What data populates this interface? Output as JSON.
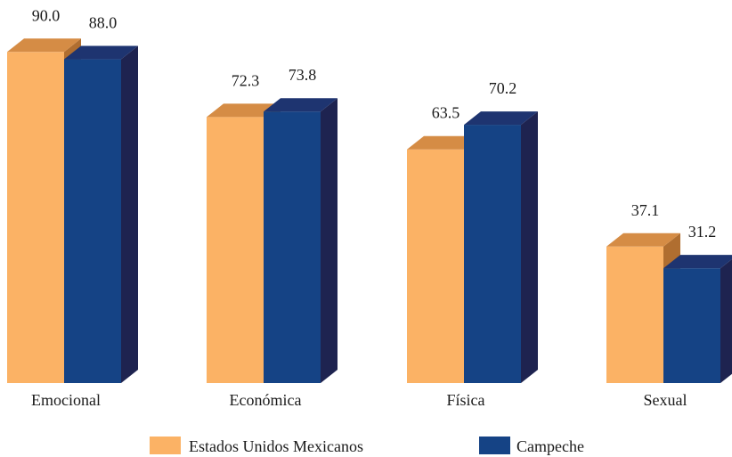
{
  "chart_data": {
    "type": "bar",
    "style": "3d-column",
    "categories": [
      "Emocional",
      "Económica",
      "Física",
      "Sexual"
    ],
    "series": [
      {
        "name": "Estados Unidos Mexicanos",
        "values": [
          90.0,
          72.3,
          63.5,
          37.1
        ],
        "value_labels": [
          "90.0",
          "72.3",
          "63.5",
          "37.1"
        ],
        "color": "#FBB265",
        "top_color": "#D58C45",
        "side_color": "#B06E30"
      },
      {
        "name": "Campeche",
        "values": [
          88.0,
          73.8,
          70.2,
          31.2
        ],
        "value_labels": [
          "88.0",
          "73.8",
          "70.2",
          "31.2"
        ],
        "color": "#154385",
        "top_color": "#1E3470",
        "side_color": "#1E2350"
      }
    ],
    "title": "",
    "xlabel": "",
    "ylabel": "",
    "ylim": [
      0,
      100
    ],
    "grid": false,
    "legend_position": "bottom"
  }
}
